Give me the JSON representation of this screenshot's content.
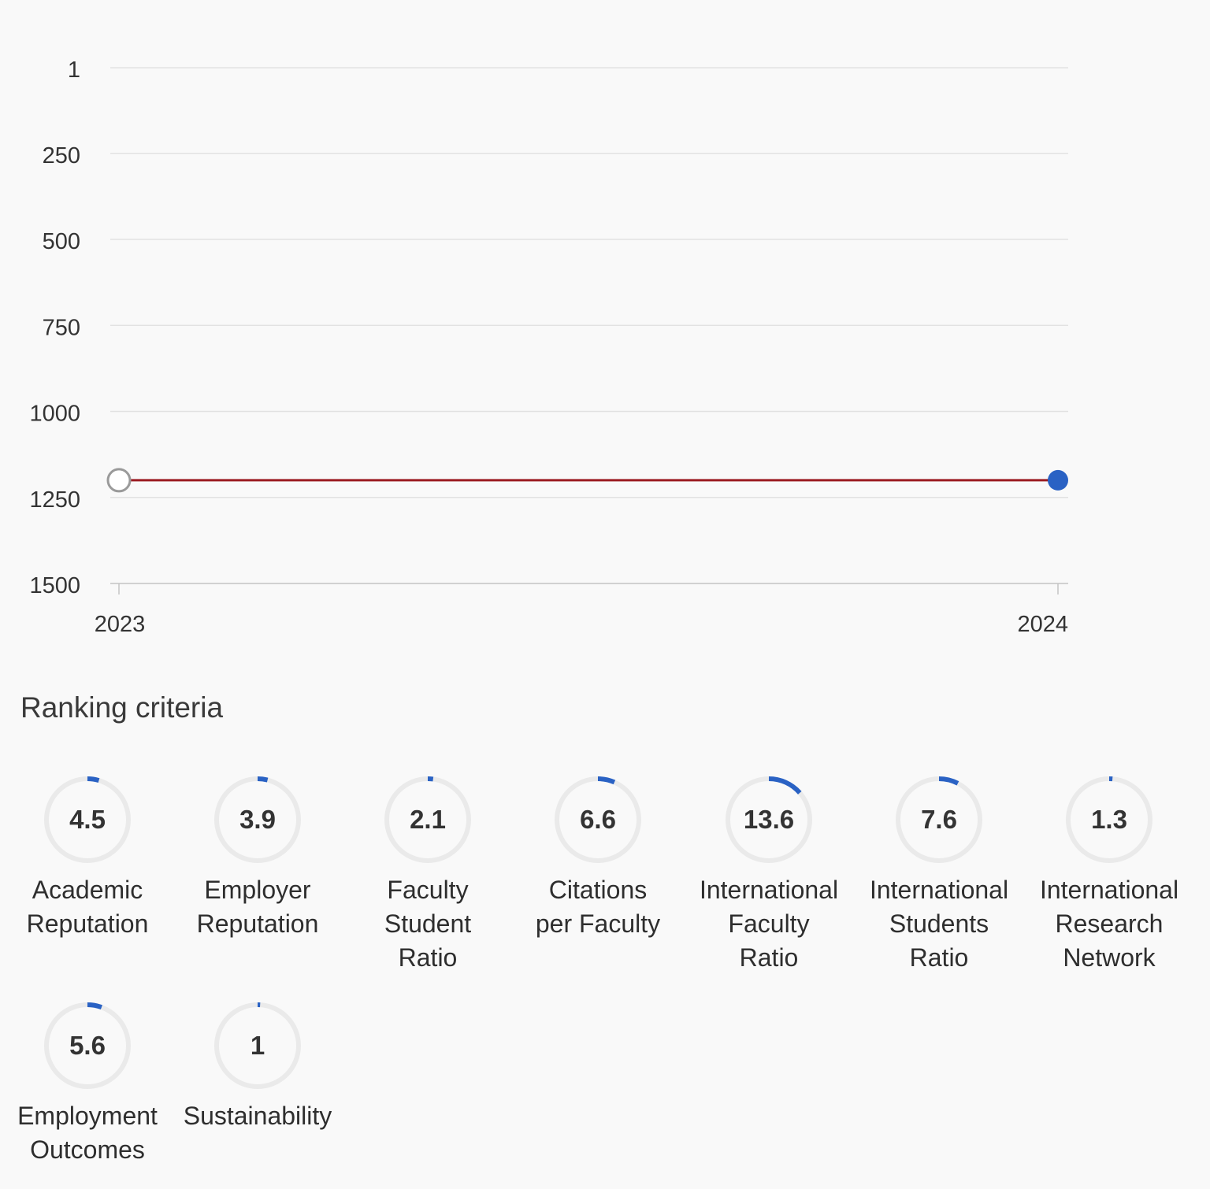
{
  "colors": {
    "line": "#9b1c22",
    "point_current": "#2a62c4",
    "point_past_stroke": "#9a9a9a",
    "grid": "#e2e2e2",
    "axis": "#c4c4c4",
    "ring_track": "#eaeaea",
    "ring_fill": "#2a62c4"
  },
  "chart_data": {
    "type": "line",
    "x": [
      "2023",
      "2024"
    ],
    "y_reversed": true,
    "ylim": [
      1,
      1500
    ],
    "yticks": [
      1,
      250,
      500,
      750,
      1000,
      1250,
      1500
    ],
    "series": [
      {
        "values": [
          1200,
          1200
        ]
      }
    ],
    "grid": true
  },
  "criteria_section": {
    "title": "Ranking criteria",
    "items": [
      {
        "value": "4.5",
        "label": "Academic\nReputation",
        "score": 4.5
      },
      {
        "value": "3.9",
        "label": "Employer\nReputation",
        "score": 3.9
      },
      {
        "value": "2.1",
        "label": "Faculty\nStudent\nRatio",
        "score": 2.1
      },
      {
        "value": "6.6",
        "label": "Citations\nper Faculty",
        "score": 6.6
      },
      {
        "value": "13.6",
        "label": "International\nFaculty\nRatio",
        "score": 13.6
      },
      {
        "value": "7.6",
        "label": "International\nStudents\nRatio",
        "score": 7.6
      },
      {
        "value": "1.3",
        "label": "International\nResearch\nNetwork",
        "score": 1.3
      },
      {
        "value": "5.6",
        "label": "Employment\nOutcomes",
        "score": 5.6
      },
      {
        "value": "1",
        "label": "Sustainability",
        "score": 1
      }
    ]
  }
}
